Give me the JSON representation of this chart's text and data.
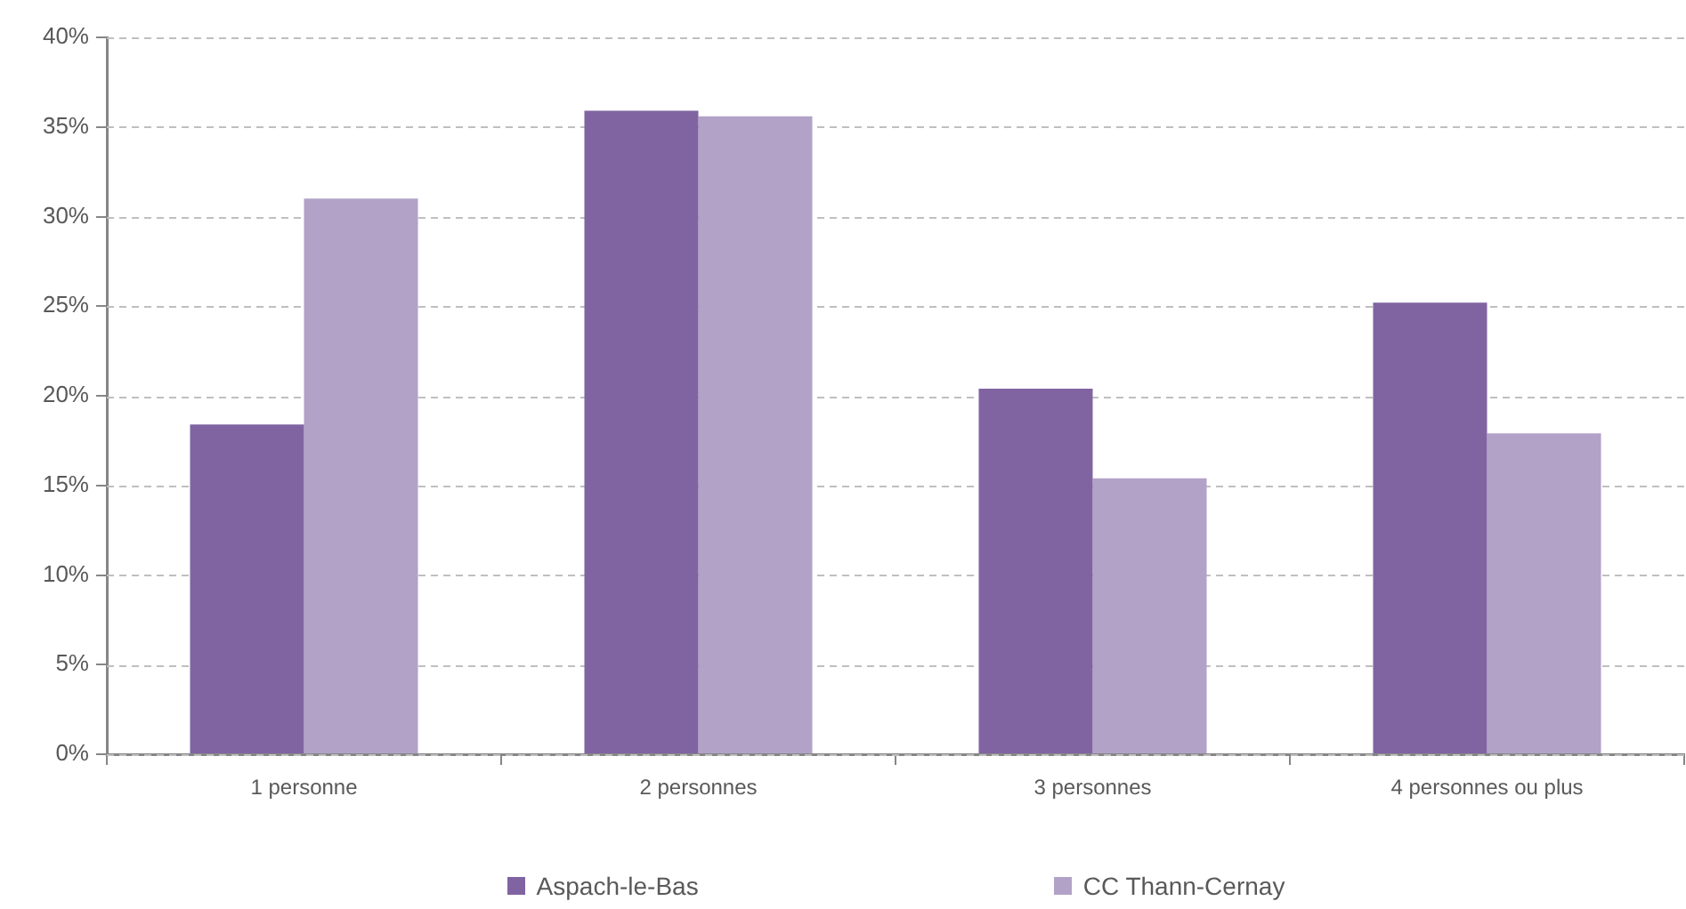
{
  "chart_data": {
    "type": "bar",
    "categories": [
      "1 personne",
      "2 personnes",
      "3 personnes",
      "4 personnes ou plus"
    ],
    "series": [
      {
        "name": "Aspach-le-Bas",
        "color": "#8064a2",
        "values": [
          18.4,
          35.9,
          20.4,
          25.2
        ]
      },
      {
        "name": "CC Thann-Cernay",
        "color": "#b2a2c7",
        "values": [
          31.0,
          35.6,
          15.4,
          17.9
        ]
      }
    ],
    "ylim": [
      0,
      40
    ],
    "yticks": [
      {
        "value": 0,
        "label": "0%"
      },
      {
        "value": 5,
        "label": "5%"
      },
      {
        "value": 10,
        "label": "10%"
      },
      {
        "value": 15,
        "label": "15%"
      },
      {
        "value": 20,
        "label": "20%"
      },
      {
        "value": 25,
        "label": "25%"
      },
      {
        "value": 30,
        "label": "30%"
      },
      {
        "value": 35,
        "label": "35%"
      },
      {
        "value": 40,
        "label": "40%"
      }
    ],
    "grid": "y",
    "legend": "bottom"
  }
}
